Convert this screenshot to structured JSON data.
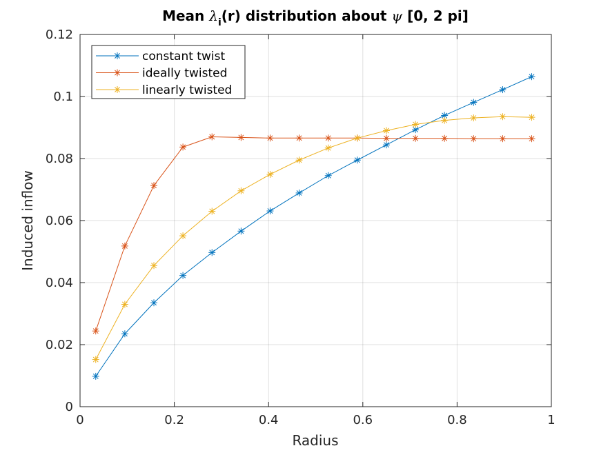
{
  "chart_data": {
    "type": "line",
    "title_prefix": "Mean ",
    "title_lambda": "λ",
    "title_subscript": "i",
    "title_middle": "(r) distribution about ",
    "title_psi": "ψ",
    "title_suffix": " [0, 2 pi]",
    "xlabel": "Radius",
    "ylabel": "Induced inflow",
    "xlim": [
      0,
      1
    ],
    "ylim": [
      0,
      0.12
    ],
    "xticks": [
      0,
      0.2,
      0.4,
      0.6,
      0.8,
      1
    ],
    "xtick_labels": [
      "0",
      "0.2",
      "0.4",
      "0.6",
      "0.8",
      "1"
    ],
    "yticks": [
      0,
      0.02,
      0.04,
      0.06,
      0.08,
      0.1,
      0.12
    ],
    "ytick_labels": [
      "0",
      "0.02",
      "0.04",
      "0.06",
      "0.08",
      "0.1",
      "0.12"
    ],
    "grid": true,
    "legend_position": "top-left",
    "x": [
      0.0333,
      0.095,
      0.1567,
      0.2183,
      0.28,
      0.3417,
      0.4033,
      0.465,
      0.5267,
      0.5883,
      0.65,
      0.7117,
      0.7733,
      0.835,
      0.8967,
      0.9583
    ],
    "series": [
      {
        "name": "constant twist",
        "color": "#0072bd",
        "values": [
          0.0098,
          0.0235,
          0.0335,
          0.0423,
          0.0497,
          0.0566,
          0.0631,
          0.0689,
          0.0745,
          0.0795,
          0.0844,
          0.0893,
          0.0939,
          0.0981,
          0.1022,
          0.1064
        ]
      },
      {
        "name": "ideally twisted",
        "color": "#d95319",
        "values": [
          0.0244,
          0.0518,
          0.0713,
          0.0837,
          0.087,
          0.0868,
          0.0866,
          0.0866,
          0.0866,
          0.0866,
          0.0865,
          0.0865,
          0.0865,
          0.0864,
          0.0864,
          0.0864
        ]
      },
      {
        "name": "linearly twisted",
        "color": "#edb120",
        "values": [
          0.0152,
          0.033,
          0.0455,
          0.0551,
          0.063,
          0.0696,
          0.0749,
          0.0795,
          0.0834,
          0.0866,
          0.089,
          0.091,
          0.0923,
          0.0931,
          0.0935,
          0.0933
        ]
      }
    ]
  }
}
